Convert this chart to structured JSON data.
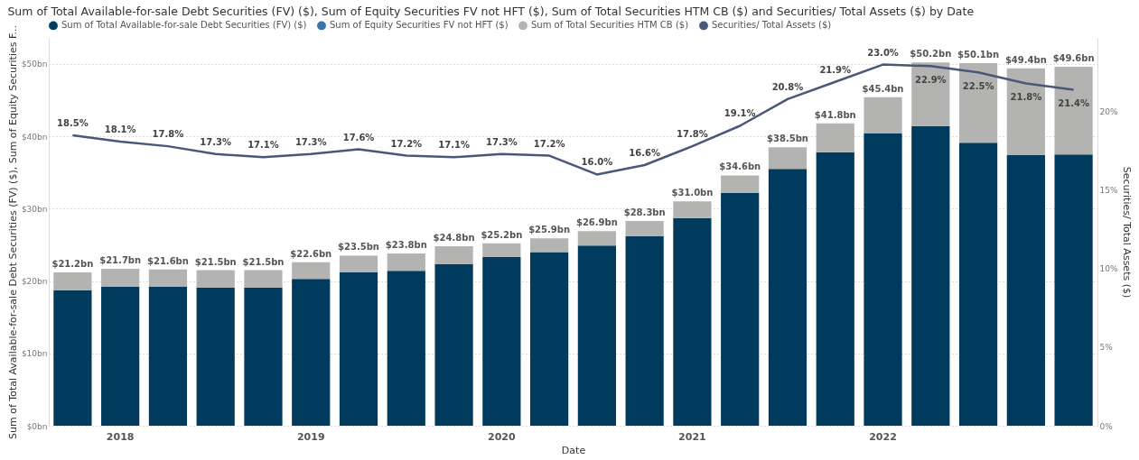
{
  "chart_data": {
    "type": "bar",
    "stacked": true,
    "title": "Sum of Total Available-for-sale Debt Securities (FV) ($), Sum of Equity Securities FV not HFT ($), Sum of Total Securities HTM CB ($) and Securities/ Total Assets ($) by Date",
    "xlabel": "Date",
    "ylabel": "Sum of Total Available-for-sale Debt Securities (FV) ($), Sum of Equity Securities F...",
    "y2label": "Securities/ Total Assets ($)",
    "categories": [
      null,
      "2018",
      null,
      null,
      null,
      "2019",
      null,
      null,
      null,
      "2020",
      null,
      null,
      null,
      "2021",
      null,
      null,
      null,
      "2022",
      null,
      null,
      null,
      null
    ],
    "series": [
      {
        "name": "Sum of Total Available-for-sale Debt Securities (FV) ($)",
        "color": "#003a5c",
        "values": [
          18.7,
          19.2,
          19.2,
          19.1,
          19.1,
          20.3,
          21.2,
          21.4,
          22.3,
          23.3,
          24.0,
          24.9,
          26.2,
          28.7,
          32.2,
          35.5,
          37.8,
          40.4,
          41.4,
          39.1,
          37.4,
          37.5
        ]
      },
      {
        "name": "Sum of Equity Securities FV not HFT ($)",
        "color": "#3a73a8",
        "values": [
          null,
          null,
          null,
          null,
          null,
          null,
          null,
          null,
          null,
          null,
          null,
          null,
          null,
          null,
          null,
          null,
          null,
          null,
          null,
          null,
          null,
          null
        ]
      },
      {
        "name": "Sum of Total Securities HTM CB ($)",
        "color": "#b3b3b1",
        "values": [
          2.5,
          2.5,
          2.4,
          2.4,
          2.4,
          2.3,
          2.3,
          2.4,
          2.5,
          1.9,
          1.9,
          2.0,
          2.1,
          2.3,
          2.4,
          3.0,
          4.0,
          5.0,
          8.8,
          11.0,
          12.0,
          12.1
        ]
      },
      {
        "name": "Securities/ Total Assets ($)",
        "color": "#4a5878",
        "type": "line",
        "axis": "y2",
        "values": [
          18.5,
          18.1,
          17.8,
          17.3,
          17.1,
          17.3,
          17.6,
          17.2,
          17.1,
          17.3,
          17.2,
          16.0,
          16.6,
          17.8,
          19.1,
          20.8,
          21.9,
          23.0,
          22.9,
          22.5,
          21.8,
          21.4
        ],
        "value_labels": [
          "18.5%",
          "18.1%",
          "17.8%",
          "17.3%",
          "17.1%",
          "17.3%",
          "17.6%",
          "17.2%",
          "17.1%",
          "17.3%",
          "17.2%",
          "16.0%",
          "16.6%",
          "17.8%",
          "19.1%",
          "20.8%",
          "21.9%",
          "23.0%",
          "22.9%",
          "22.5%",
          "21.8%",
          "21.4%"
        ]
      }
    ],
    "totals": [
      "$21.2bn",
      "$21.7bn",
      "$21.6bn",
      "$21.5bn",
      "$21.5bn",
      "$22.6bn",
      "$23.5bn",
      "$23.8bn",
      "$24.8bn",
      "$25.2bn",
      "$25.9bn",
      "$26.9bn",
      "$28.3bn",
      "$31.0bn",
      "$34.6bn",
      "$38.5bn",
      "$41.8bn",
      "$45.4bn",
      "$50.2bn",
      "$50.1bn",
      "$49.4bn",
      "$49.6bn"
    ],
    "ylim": [
      0,
      53.6
    ],
    "yticks": [
      {
        "value": 0,
        "label": "$0bn"
      },
      {
        "value": 10,
        "label": "$10bn"
      },
      {
        "value": 20,
        "label": "$20bn"
      },
      {
        "value": 30,
        "label": "$30bn"
      },
      {
        "value": 40,
        "label": "$40bn"
      },
      {
        "value": 50,
        "label": "$50bn"
      }
    ],
    "y2lim": [
      0,
      24.7
    ],
    "y2ticks": [
      {
        "value": 0,
        "label": "0%"
      },
      {
        "value": 5,
        "label": "5%"
      },
      {
        "value": 10,
        "label": "10%"
      },
      {
        "value": 15,
        "label": "15%"
      },
      {
        "value": 20,
        "label": "20%"
      }
    ],
    "grid": "y",
    "legend": "top left",
    "marker": "none",
    "line_style": "solid"
  }
}
